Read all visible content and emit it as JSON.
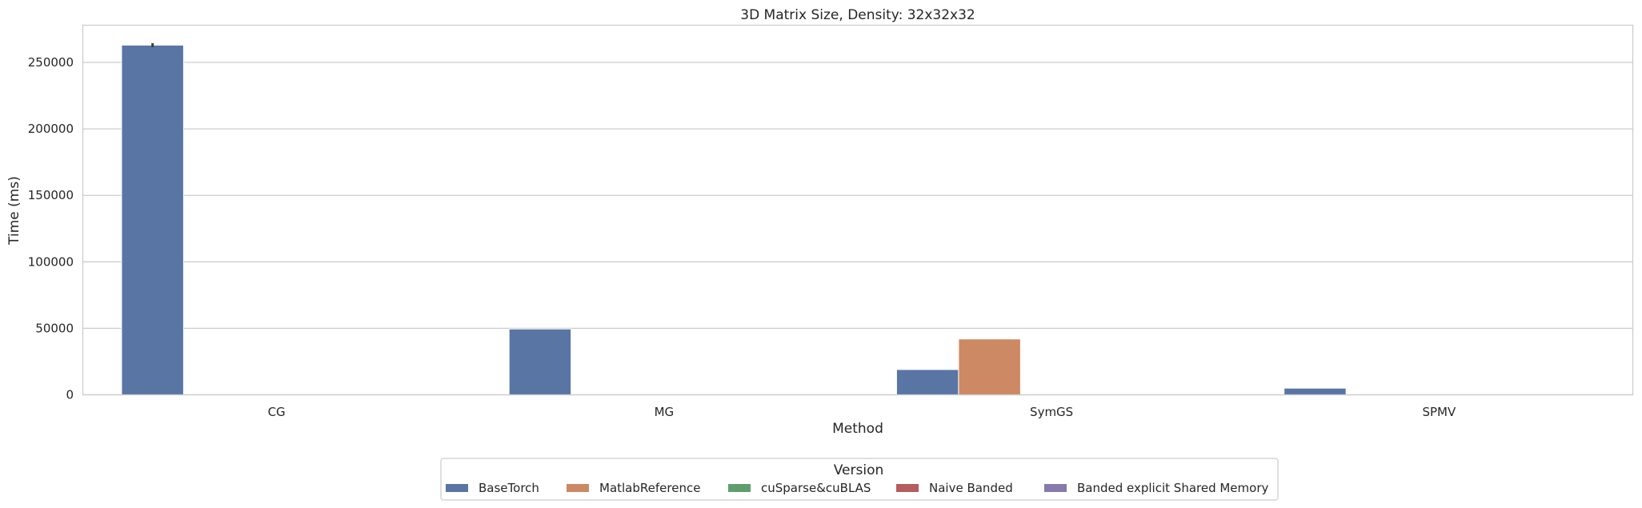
{
  "chart_data": {
    "type": "bar",
    "title": "3D Matrix Size, Density: 32x32x32",
    "xlabel": "Method",
    "ylabel": "Time (ms)",
    "categories": [
      "CG",
      "MG",
      "SymGS",
      "SPMV"
    ],
    "yticks": [
      "0",
      "50000",
      "100000",
      "150000",
      "200000",
      "250000"
    ],
    "ylim": [
      0,
      278000
    ],
    "grid": "horizontal",
    "legend": {
      "title": "Version",
      "placement": "bottom-center"
    },
    "series": [
      {
        "name": "BaseTorch",
        "color": "#5875a4",
        "values": [
          263000,
          49500,
          19000,
          5000
        ],
        "errors": [
          1500,
          0,
          0,
          0
        ]
      },
      {
        "name": "MatlabReference",
        "color": "#cc8963",
        "values": [
          0,
          0,
          42000,
          0
        ]
      },
      {
        "name": "cuSparse&cuBLAS",
        "color": "#5f9e6e",
        "values": [
          0,
          0,
          0,
          0
        ]
      },
      {
        "name": "Naive Banded",
        "color": "#b55d60",
        "values": [
          0,
          0,
          0,
          0
        ]
      },
      {
        "name": "Banded explicit Shared Memory",
        "color": "#857aab",
        "values": [
          0,
          0,
          0,
          0
        ]
      }
    ]
  }
}
